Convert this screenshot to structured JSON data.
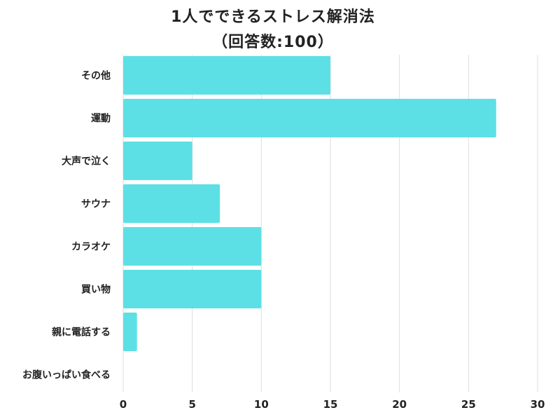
{
  "chart_data": {
    "type": "bar",
    "orientation": "horizontal",
    "title": "1人でできるストレス解消法",
    "subtitle": "（回答数:100）",
    "categories": [
      "その他",
      "運動",
      "大声で泣く",
      "サウナ",
      "カラオケ",
      "買い物",
      "親に電話する",
      "お腹いっぱい食べる"
    ],
    "values": [
      15,
      27,
      5,
      7,
      10,
      10,
      1,
      0
    ],
    "xlim": [
      0,
      30
    ],
    "xticks": [
      0,
      5,
      10,
      15,
      20,
      25,
      30
    ],
    "grid": true,
    "bar_color": "#5ce0e5",
    "grid_color": "#dddddd"
  }
}
